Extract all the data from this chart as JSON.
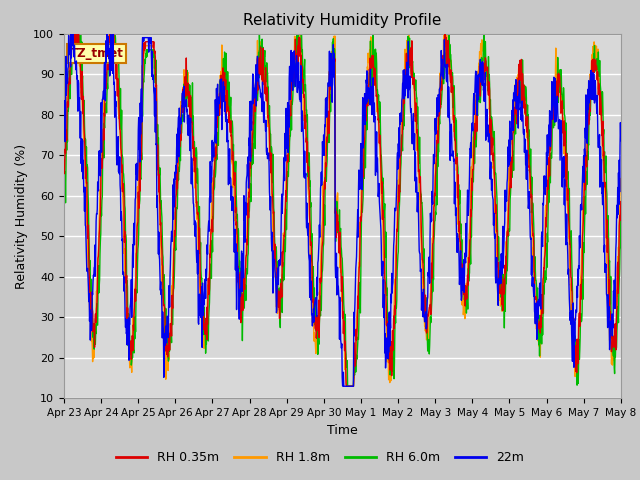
{
  "title": "Relativity Humidity Profile",
  "xlabel": "Time",
  "ylabel": "Relativity Humidity (%)",
  "ylim": [
    10,
    100
  ],
  "yticks": [
    10,
    20,
    30,
    40,
    50,
    60,
    70,
    80,
    90,
    100
  ],
  "xtick_labels": [
    "Apr 23",
    "Apr 24",
    "Apr 25",
    "Apr 26",
    "Apr 27",
    "Apr 28",
    "Apr 29",
    "Apr 30",
    "May 1",
    "May 2",
    "May 3",
    "May 4",
    "May 5",
    "May 6",
    "May 7",
    "May 8"
  ],
  "legend_labels": [
    "RH 0.35m",
    "RH 1.8m",
    "RH 6.0m",
    "22m"
  ],
  "legend_colors": [
    "#dd0000",
    "#ff9900",
    "#00bb00",
    "#0000ee"
  ],
  "annotation_text": "TZ_tmet",
  "plot_bg_color": "#d8d8d8",
  "fig_bg_color": "#c8c8c8",
  "grid_color": "#bbbbbb",
  "n_days": 15,
  "pts_per_day": 96
}
